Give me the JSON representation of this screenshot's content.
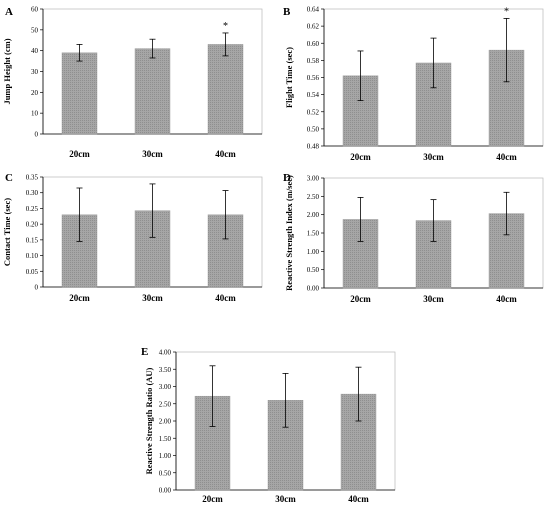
{
  "chart_data": [
    {
      "panel": "A",
      "type": "bar",
      "categories": [
        "20cm",
        "30cm",
        "40cm"
      ],
      "values": [
        39,
        41,
        43
      ],
      "errors": [
        4,
        4.5,
        5.5
      ],
      "significance": [
        "",
        "",
        "*"
      ],
      "ylabel": "Jump Height (cm)",
      "ylim": [
        0,
        60
      ],
      "yticks": [
        0,
        10,
        20,
        30,
        40,
        50,
        60
      ],
      "ytick_labels": [
        "0",
        "10",
        "20",
        "30",
        "40",
        "50",
        "60"
      ],
      "bar_color": "#a6a6a6"
    },
    {
      "panel": "B",
      "type": "bar",
      "categories": [
        "20cm",
        "30cm",
        "40cm"
      ],
      "values": [
        0.562,
        0.577,
        0.592
      ],
      "errors": [
        0.029,
        0.029,
        0.037
      ],
      "significance": [
        "",
        "",
        "*"
      ],
      "ylabel": "Flight Time (sec)",
      "ylim": [
        0.48,
        0.64
      ],
      "yticks": [
        0.48,
        0.5,
        0.52,
        0.54,
        0.56,
        0.58,
        0.6,
        0.62,
        0.64
      ],
      "ytick_labels": [
        "0.48",
        "0.50",
        "0.52",
        "0.54",
        "0.56",
        "0.58",
        "0.60",
        "0.62",
        "0.64"
      ],
      "bar_color": "#a6a6a6"
    },
    {
      "panel": "C",
      "type": "bar",
      "categories": [
        "20cm",
        "30cm",
        "40cm"
      ],
      "values": [
        0.23,
        0.243,
        0.23
      ],
      "errors": [
        0.085,
        0.085,
        0.077
      ],
      "significance": [
        "",
        "",
        ""
      ],
      "ylabel": "Contact Time (sec)",
      "ylim": [
        0,
        0.35
      ],
      "yticks": [
        0,
        0.05,
        0.1,
        0.15,
        0.2,
        0.25,
        0.3,
        0.35
      ],
      "ytick_labels": [
        "0",
        "0.05",
        "0.10",
        "0.15",
        "0.20",
        "0.25",
        "0.30",
        "0.35"
      ],
      "bar_color": "#a6a6a6"
    },
    {
      "panel": "D",
      "type": "bar",
      "categories": [
        "20cm",
        "30cm",
        "40cm"
      ],
      "values": [
        1.87,
        1.84,
        2.03
      ],
      "errors": [
        0.6,
        0.57,
        0.58
      ],
      "significance": [
        "",
        "",
        ""
      ],
      "ylabel": "Reactive Strength Index (m/sec)",
      "ylim": [
        0,
        3
      ],
      "yticks": [
        0,
        0.5,
        1,
        1.5,
        2,
        2.5,
        3
      ],
      "ytick_labels": [
        "0.00",
        "0.50",
        "1.00",
        "1.50",
        "2.00",
        "2.50",
        "3.00"
      ],
      "bar_color": "#a6a6a6"
    },
    {
      "panel": "E",
      "type": "bar",
      "categories": [
        "20cm",
        "30cm",
        "40cm"
      ],
      "values": [
        2.72,
        2.6,
        2.78
      ],
      "errors": [
        0.88,
        0.78,
        0.78
      ],
      "significance": [
        "",
        "",
        ""
      ],
      "ylabel": "Reactive Strength Ratio (AU)",
      "ylim": [
        0,
        4
      ],
      "yticks": [
        0,
        0.5,
        1,
        1.5,
        2,
        2.5,
        3,
        3.5,
        4
      ],
      "ytick_labels": [
        "0.00",
        "0.50",
        "1.00",
        "1.50",
        "2.00",
        "2.50",
        "3.00",
        "3.50",
        "4.00"
      ],
      "bar_color": "#a6a6a6"
    }
  ]
}
